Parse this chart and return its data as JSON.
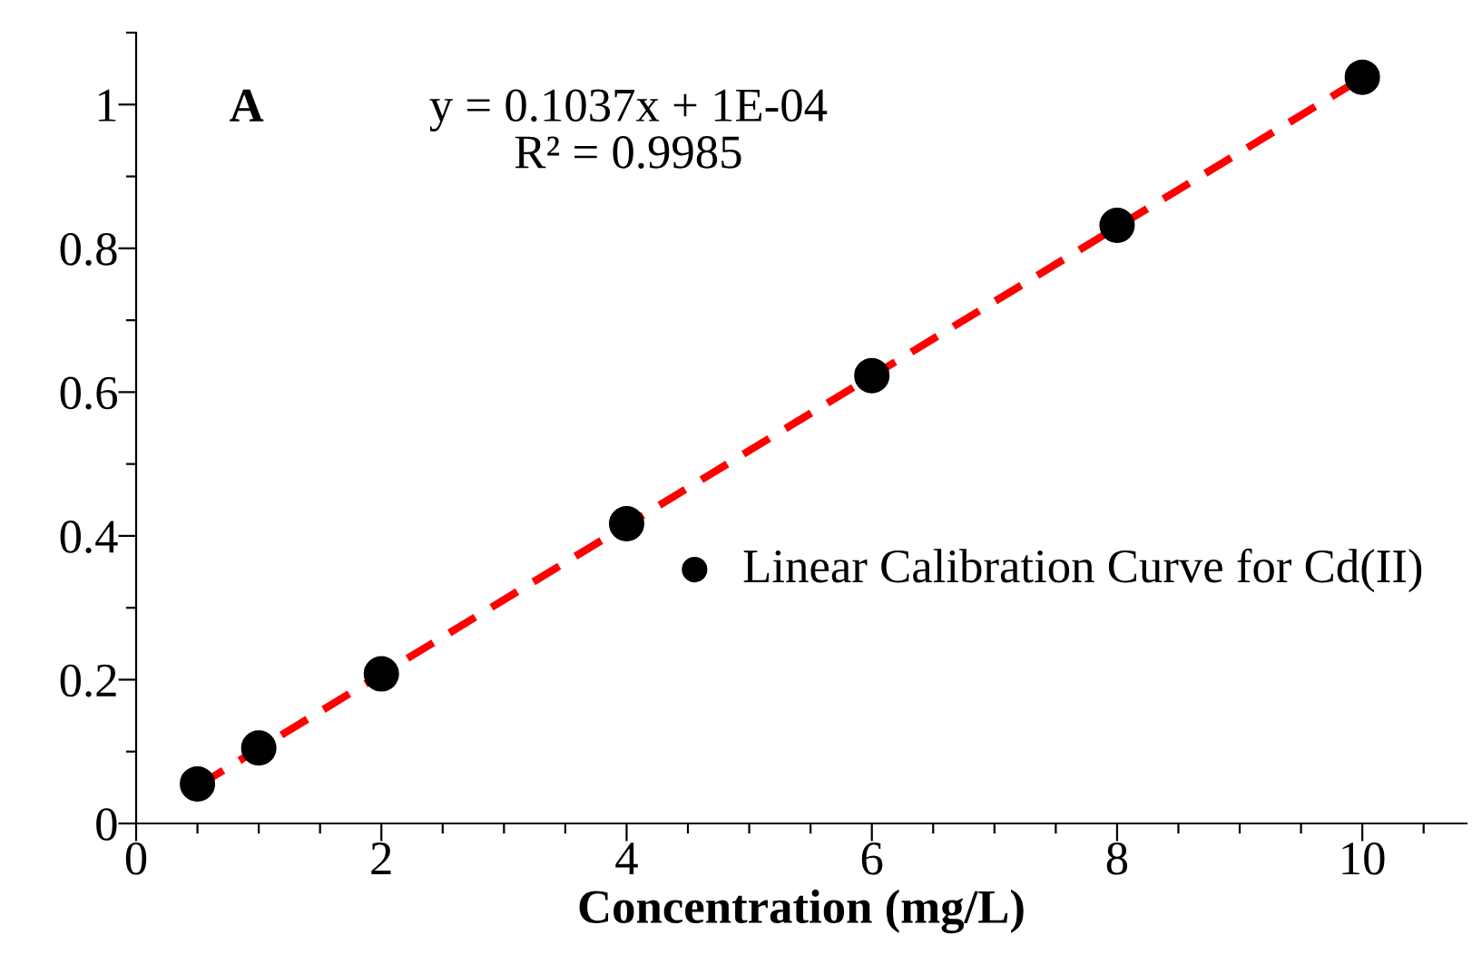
{
  "chart_data": {
    "type": "scatter",
    "xlabel": "Concentration (mg/L)",
    "annotations": [
      "A",
      "y = 0.1037x + 1E-04\nR² = 0.9985"
    ],
    "series": [
      {
        "name": "Linear Calibration Curve for Cd(II)",
        "color": "#000000",
        "marker": "circle",
        "x": [
          0.5,
          1,
          2,
          4,
          6,
          8,
          10
        ],
        "values": [
          0.055,
          0.105,
          0.208,
          0.417,
          0.623,
          0.832,
          1.038
        ]
      },
      {
        "type": "line",
        "color": "#ff0000",
        "line_style": "dashed",
        "x": [
          0.5,
          10
        ],
        "values": [
          0.052,
          1.037
        ]
      }
    ],
    "xlim": [
      0,
      10.85
    ],
    "ylim": [
      0,
      1.1
    ],
    "xticks": [
      0,
      {
        "value": 0.5,
        "label": null
      },
      {
        "value": 1,
        "label": null
      },
      {
        "value": 1.5,
        "label": null
      },
      2,
      {
        "value": 2.5,
        "label": null
      },
      {
        "value": 3,
        "label": null
      },
      {
        "value": 3.5,
        "label": null
      },
      4,
      {
        "value": 4.5,
        "label": null
      },
      {
        "value": 5,
        "label": null
      },
      {
        "value": 5.5,
        "label": null
      },
      6,
      {
        "value": 6.5,
        "label": null
      },
      {
        "value": 7,
        "label": null
      },
      {
        "value": 7.5,
        "label": null
      },
      8,
      {
        "value": 8.5,
        "label": null
      },
      {
        "value": 9,
        "label": null
      },
      {
        "value": 9.5,
        "label": null
      },
      10,
      {
        "value": 10.5,
        "label": null
      }
    ],
    "yticks": [
      0,
      {
        "value": 0.1,
        "label": null
      },
      0.2,
      {
        "value": 0.3,
        "label": null
      },
      0.4,
      {
        "value": 0.5,
        "label": null
      },
      0.6,
      {
        "value": 0.7,
        "label": null
      },
      0.8,
      {
        "value": 0.9,
        "label": null
      },
      1,
      {
        "value": 1.1,
        "label": null
      }
    ],
    "grid": false,
    "legend": "right"
  }
}
